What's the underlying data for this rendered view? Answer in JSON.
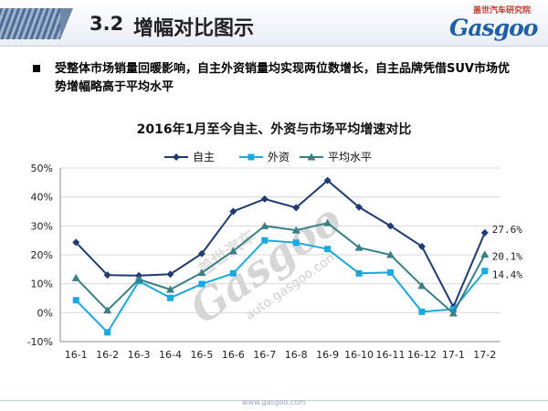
{
  "header": {
    "section_number": "3.2",
    "title": "增幅对比图示",
    "logo_cn": "盖世汽车研究院",
    "logo_en": "Gasgoo"
  },
  "bullet": {
    "text": "受整体市场销量回暖影响，自主外资销量均实现两位数增长，自主品牌凭借SUV市场优势增幅略高于平均水平"
  },
  "watermark": {
    "logo_en": "Gasgoo",
    "logo_cn": "盖世汽车",
    "url": "auto.gasgoo.com"
  },
  "footer": {
    "url": "www.gasgoo.com"
  },
  "colors": {
    "domestic": "#1f3b73",
    "foreign": "#19a8e0",
    "average": "#3a7f86",
    "grid": "#d9d9d9",
    "axis": "#8c8c8c"
  },
  "chart_data": {
    "type": "line",
    "title": "2016年1月至今自主、外资与市场平均增速对比",
    "xlabel": "",
    "ylabel": "",
    "ylim": [
      -10,
      50
    ],
    "yticks": [
      -10,
      0,
      10,
      20,
      30,
      40,
      50
    ],
    "ytick_labels": [
      "-10%",
      "0%",
      "10%",
      "20%",
      "30%",
      "40%",
      "50%"
    ],
    "grid": true,
    "legend_position": "top",
    "categories": [
      "16-1",
      "16-2",
      "16-3",
      "16-4",
      "16-5",
      "16-6",
      "16-7",
      "16-8",
      "16-9",
      "16-10",
      "16-11",
      "16-12",
      "17-1",
      "17-2"
    ],
    "series": [
      {
        "name": "自主",
        "key": "domestic",
        "marker": "diamond",
        "values": [
          24.3,
          13.0,
          12.8,
          13.3,
          20.4,
          35.0,
          39.3,
          36.3,
          45.7,
          36.5,
          30.0,
          22.9,
          2.0,
          27.6
        ],
        "end_label": "27.6%"
      },
      {
        "name": "外资",
        "key": "foreign",
        "marker": "square",
        "values": [
          4.3,
          -6.8,
          10.9,
          5.1,
          9.9,
          13.6,
          25.0,
          24.2,
          22.0,
          13.6,
          13.9,
          0.3,
          1.2,
          14.4
        ],
        "end_label": "14.4%"
      },
      {
        "name": "平均水平",
        "key": "average",
        "marker": "triangle",
        "values": [
          12.0,
          0.8,
          11.5,
          8.0,
          13.8,
          21.3,
          30.0,
          28.5,
          31.0,
          22.5,
          20.0,
          9.3,
          -0.2,
          20.1
        ],
        "end_label": "20.1%"
      }
    ]
  }
}
